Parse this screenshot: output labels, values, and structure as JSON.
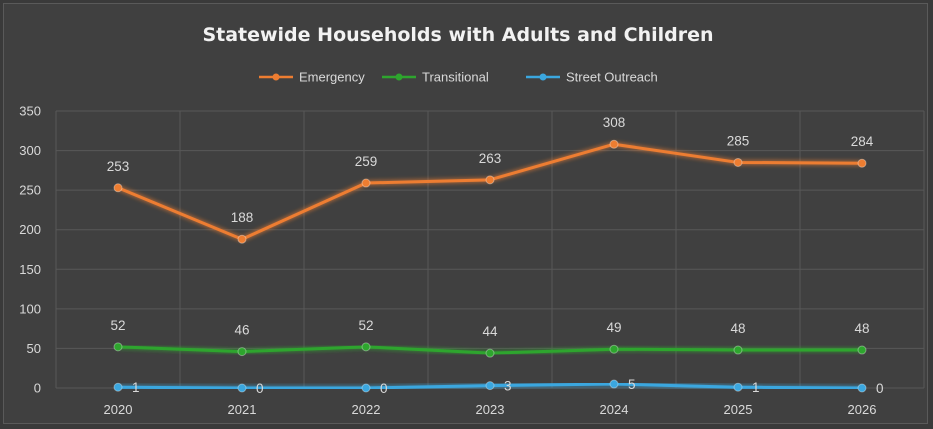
{
  "chart_data": {
    "type": "line",
    "title": "Statewide Households with Adults and Children",
    "categories": [
      "2020",
      "2021",
      "2022",
      "2023",
      "2024",
      "2025",
      "2026"
    ],
    "ylim": [
      0,
      350
    ],
    "yticks": [
      0,
      50,
      100,
      150,
      200,
      250,
      300,
      350
    ],
    "grid": true,
    "legend_position": "top",
    "series": [
      {
        "name": "Emergency",
        "color": "#ED7D31",
        "values": [
          253,
          188,
          259,
          263,
          308,
          285,
          284
        ]
      },
      {
        "name": "Transitional",
        "color": "#2EA52E",
        "values": [
          52,
          46,
          52,
          44,
          49,
          48,
          48
        ]
      },
      {
        "name": "Street Outreach",
        "color": "#3BA7DF",
        "values": [
          1,
          0,
          0,
          3,
          5,
          1,
          0
        ]
      }
    ]
  }
}
